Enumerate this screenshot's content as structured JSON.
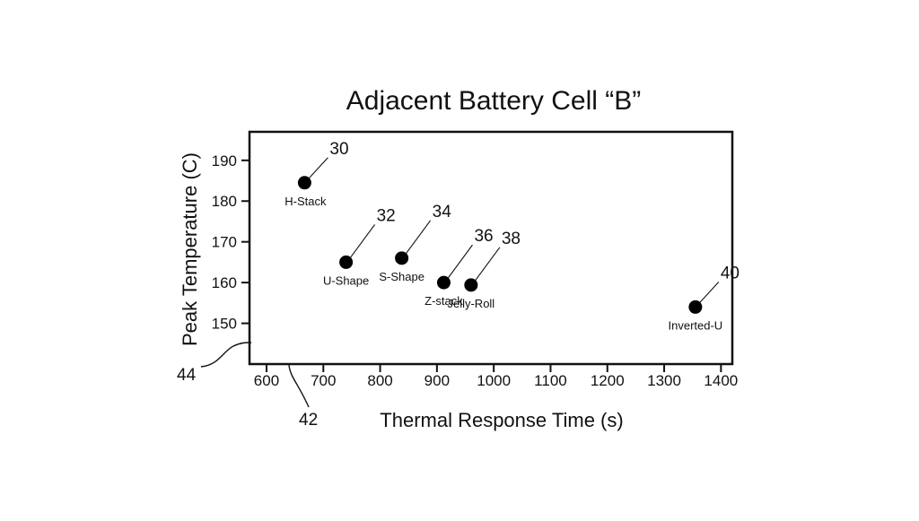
{
  "chart_data": {
    "type": "scatter",
    "title": "Adjacent Battery Cell “B”",
    "xlabel": "Thermal Response Time (s)",
    "ylabel": "Peak Temperature (C)",
    "xlim": [
      570,
      1420
    ],
    "ylim": [
      140,
      197
    ],
    "xticks": [
      600,
      700,
      800,
      900,
      1000,
      1100,
      1200,
      1300,
      1400
    ],
    "yticks": [
      150,
      160,
      170,
      180,
      190
    ],
    "grid": false,
    "points": [
      {
        "label": "H-Stack",
        "ref": "30",
        "x": 667,
        "y": 184.5
      },
      {
        "label": "U-Shape",
        "ref": "32",
        "x": 740,
        "y": 165
      },
      {
        "label": "S-Shape",
        "ref": "34",
        "x": 838,
        "y": 166
      },
      {
        "label": "Z-stack",
        "ref": "36",
        "x": 912,
        "y": 160
      },
      {
        "label": "Jelly-Roll",
        "ref": "38",
        "x": 960,
        "y": 159.4
      },
      {
        "label": "Inverted-U",
        "ref": "40",
        "x": 1355,
        "y": 154
      }
    ],
    "axis_refs": {
      "y_axis_ref": "44",
      "x_axis_ref": "42"
    }
  }
}
